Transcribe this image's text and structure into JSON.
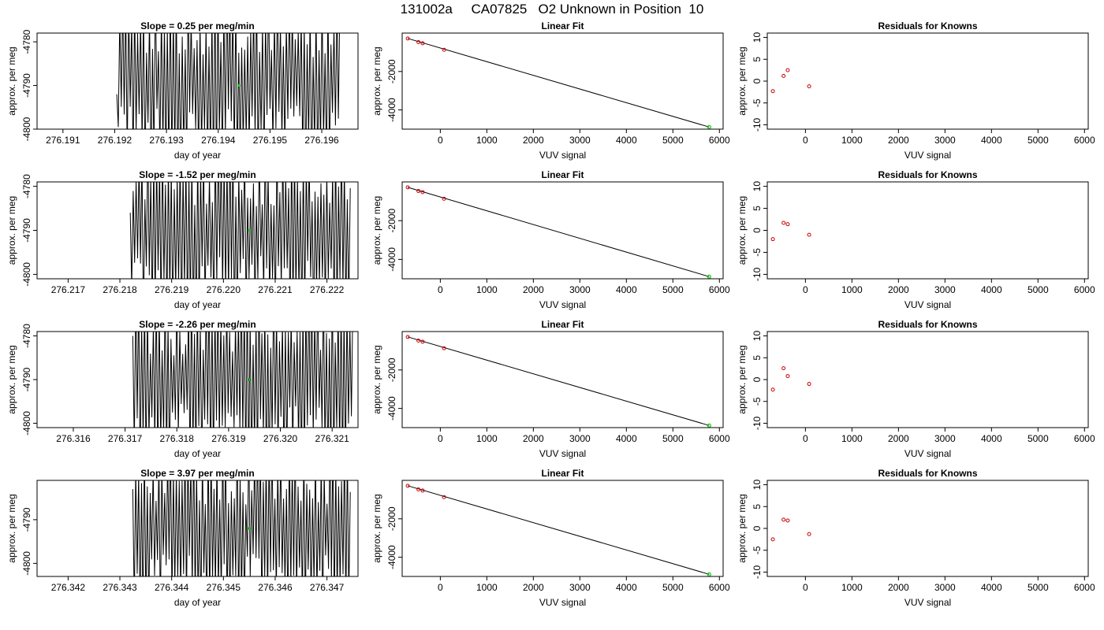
{
  "page": {
    "title": "131002a     CA07825   O2 Unknown in Position  10"
  },
  "chart_data": [
    {
      "type": "line",
      "panel": "trace",
      "title": "Slope =  0.25  per meg/min",
      "xlabel": "day of year",
      "ylabel": "approx. per meg",
      "xlim": [
        276.1905,
        276.1967
      ],
      "ylim": [
        -4800,
        -4778
      ],
      "xticks": [
        276.191,
        276.192,
        276.193,
        276.194,
        276.195,
        276.196
      ],
      "xtick_labels": [
        "276.191",
        "276.192",
        "276.193",
        "276.194",
        "276.195",
        "276.196"
      ],
      "yticks": [
        -4800,
        -4790,
        -4780
      ],
      "ytick_labels": [
        "-4800",
        "-4790",
        "-4780"
      ],
      "trace_x_range": [
        276.19204,
        276.19635
      ],
      "trace_start_y": -4792,
      "highlight_point": {
        "x": 276.1944,
        "y": -4790
      },
      "grid": false,
      "legend": "none"
    },
    {
      "type": "scatter",
      "panel": "fit",
      "title": "Linear Fit",
      "xlabel": "VUV signal",
      "ylabel": "approx. per meg",
      "xlim": [
        -820,
        6080
      ],
      "ylim": [
        -5000,
        0
      ],
      "xticks": [
        0,
        1000,
        2000,
        3000,
        4000,
        5000,
        6000
      ],
      "xtick_labels": [
        "0",
        "1000",
        "2000",
        "3000",
        "4000",
        "5000",
        "6000"
      ],
      "yticks": [
        -4000,
        -2000
      ],
      "ytick_labels": [
        "-4000",
        "-2000"
      ],
      "known_points": {
        "x": [
          -700,
          -470,
          -380,
          80
        ],
        "y": [
          -280,
          -470,
          -530,
          -870
        ]
      },
      "fit_line": {
        "x": [
          -700,
          5780
        ],
        "y": [
          -280,
          -4890
        ]
      },
      "unknown_point": {
        "x": 5780,
        "y": -4890
      },
      "grid": false,
      "legend": "none"
    },
    {
      "type": "scatter",
      "panel": "residuals",
      "title": "Residuals for Knowns",
      "xlabel": "VUV signal",
      "ylabel": "approx. per meg",
      "xlim": [
        -820,
        6080
      ],
      "ylim": [
        -11,
        11
      ],
      "xticks": [
        0,
        1000,
        2000,
        3000,
        4000,
        5000,
        6000
      ],
      "xtick_labels": [
        "0",
        "1000",
        "2000",
        "3000",
        "4000",
        "5000",
        "6000"
      ],
      "yticks": [
        -10,
        -5,
        0,
        5,
        10
      ],
      "ytick_labels": [
        "-10",
        "-5",
        "0",
        "5",
        "10"
      ],
      "points": {
        "x": [
          -700,
          -470,
          -380,
          80
        ],
        "y": [
          -2.3,
          1.2,
          2.5,
          -1.2
        ]
      },
      "grid": false,
      "legend": "none"
    },
    {
      "type": "line",
      "panel": "trace",
      "title": "Slope =  -1.52  per meg/min",
      "xlabel": "day of year",
      "ylabel": "approx. per meg",
      "xlim": [
        276.2164,
        276.2226
      ],
      "ylim": [
        -4801,
        -4779
      ],
      "xticks": [
        276.217,
        276.218,
        276.219,
        276.22,
        276.221,
        276.222
      ],
      "xtick_labels": [
        "276.217",
        "276.218",
        "276.219",
        "276.220",
        "276.221",
        "276.222"
      ],
      "yticks": [
        -4800,
        -4790,
        -4780
      ],
      "ytick_labels": [
        "-4800",
        "-4790",
        "-4780"
      ],
      "trace_x_range": [
        276.2182,
        276.22245
      ],
      "trace_start_y": -4786,
      "highlight_point": {
        "x": 276.2205,
        "y": -4790
      },
      "grid": false,
      "legend": "none"
    },
    {
      "type": "scatter",
      "panel": "fit",
      "title": "Linear Fit",
      "xlabel": "VUV signal",
      "ylabel": "approx. per meg",
      "xlim": [
        -820,
        6080
      ],
      "ylim": [
        -5000,
        0
      ],
      "xticks": [
        0,
        1000,
        2000,
        3000,
        4000,
        5000,
        6000
      ],
      "xtick_labels": [
        "0",
        "1000",
        "2000",
        "3000",
        "4000",
        "5000",
        "6000"
      ],
      "yticks": [
        -4000,
        -2000
      ],
      "ytick_labels": [
        "-4000",
        "-2000"
      ],
      "known_points": {
        "x": [
          -700,
          -470,
          -380,
          80
        ],
        "y": [
          -280,
          -470,
          -530,
          -870
        ]
      },
      "fit_line": {
        "x": [
          -700,
          5780
        ],
        "y": [
          -280,
          -4890
        ]
      },
      "unknown_point": {
        "x": 5780,
        "y": -4890
      },
      "grid": false,
      "legend": "none"
    },
    {
      "type": "scatter",
      "panel": "residuals",
      "title": "Residuals for Knowns",
      "xlabel": "VUV signal",
      "ylabel": "approx. per meg",
      "xlim": [
        -820,
        6080
      ],
      "ylim": [
        -11,
        11
      ],
      "xticks": [
        0,
        1000,
        2000,
        3000,
        4000,
        5000,
        6000
      ],
      "xtick_labels": [
        "0",
        "1000",
        "2000",
        "3000",
        "4000",
        "5000",
        "6000"
      ],
      "yticks": [
        -10,
        -5,
        0,
        5,
        10
      ],
      "ytick_labels": [
        "-10",
        "-5",
        "0",
        "5",
        "10"
      ],
      "points": {
        "x": [
          -700,
          -470,
          -380,
          80
        ],
        "y": [
          -2.0,
          1.7,
          1.4,
          -1.0
        ]
      },
      "grid": false,
      "legend": "none"
    },
    {
      "type": "line",
      "panel": "trace",
      "title": "Slope =  -2.26  per meg/min",
      "xlabel": "day of year",
      "ylabel": "approx. per meg",
      "xlim": [
        276.3153,
        276.3215
      ],
      "ylim": [
        -4801,
        -4779
      ],
      "xticks": [
        276.316,
        276.317,
        276.318,
        276.319,
        276.32,
        276.321
      ],
      "xtick_labels": [
        "276.316",
        "276.317",
        "276.318",
        "276.319",
        "276.320",
        "276.321"
      ],
      "yticks": [
        -4800,
        -4790,
        -4780
      ],
      "ytick_labels": [
        "-4800",
        "-4790",
        "-4780"
      ],
      "trace_x_range": [
        276.31715,
        276.3214
      ],
      "trace_start_y": -4780,
      "highlight_point": {
        "x": 276.3194,
        "y": -4790
      },
      "grid": false,
      "legend": "none"
    },
    {
      "type": "scatter",
      "panel": "fit",
      "title": "Linear Fit",
      "xlabel": "VUV signal",
      "ylabel": "approx. per meg",
      "xlim": [
        -820,
        6080
      ],
      "ylim": [
        -5000,
        0
      ],
      "xticks": [
        0,
        1000,
        2000,
        3000,
        4000,
        5000,
        6000
      ],
      "xtick_labels": [
        "0",
        "1000",
        "2000",
        "3000",
        "4000",
        "5000",
        "6000"
      ],
      "yticks": [
        -4000,
        -2000
      ],
      "ytick_labels": [
        "-4000",
        "-2000"
      ],
      "known_points": {
        "x": [
          -700,
          -470,
          -380,
          80
        ],
        "y": [
          -280,
          -470,
          -530,
          -870
        ]
      },
      "fit_line": {
        "x": [
          -700,
          5780
        ],
        "y": [
          -280,
          -4890
        ]
      },
      "unknown_point": {
        "x": 5780,
        "y": -4890
      },
      "grid": false,
      "legend": "none"
    },
    {
      "type": "scatter",
      "panel": "residuals",
      "title": "Residuals for Knowns",
      "xlabel": "VUV signal",
      "ylabel": "approx. per meg",
      "xlim": [
        -820,
        6080
      ],
      "ylim": [
        -11,
        11
      ],
      "xticks": [
        0,
        1000,
        2000,
        3000,
        4000,
        5000,
        6000
      ],
      "xtick_labels": [
        "0",
        "1000",
        "2000",
        "3000",
        "4000",
        "5000",
        "6000"
      ],
      "yticks": [
        -10,
        -5,
        0,
        5,
        10
      ],
      "ytick_labels": [
        "-10",
        "-5",
        "0",
        "5",
        "10"
      ],
      "points": {
        "x": [
          -700,
          -470,
          -380,
          80
        ],
        "y": [
          -2.3,
          2.6,
          0.8,
          -1.0
        ]
      },
      "grid": false,
      "legend": "none"
    },
    {
      "type": "line",
      "panel": "trace",
      "title": "Slope =  3.97  per meg/min",
      "xlabel": "day of year",
      "ylabel": "approx. per meg",
      "xlim": [
        276.3414,
        276.3476
      ],
      "ylim": [
        -4803,
        -4781
      ],
      "xticks": [
        276.342,
        276.343,
        276.344,
        276.345,
        276.346,
        276.347
      ],
      "xtick_labels": [
        "276.342",
        "276.343",
        "276.344",
        "276.345",
        "276.346",
        "276.347"
      ],
      "yticks": [
        -4800,
        -4790
      ],
      "ytick_labels": [
        "-4800",
        "-4790"
      ],
      "trace_x_range": [
        276.34325,
        276.34745
      ],
      "trace_start_y": -4783,
      "highlight_point": {
        "x": 276.3455,
        "y": -4792
      },
      "grid": false,
      "legend": "none"
    },
    {
      "type": "scatter",
      "panel": "fit",
      "title": "Linear Fit",
      "xlabel": "VUV signal",
      "ylabel": "approx. per meg",
      "xlim": [
        -820,
        6080
      ],
      "ylim": [
        -5000,
        0
      ],
      "xticks": [
        0,
        1000,
        2000,
        3000,
        4000,
        5000,
        6000
      ],
      "xtick_labels": [
        "0",
        "1000",
        "2000",
        "3000",
        "4000",
        "5000",
        "6000"
      ],
      "yticks": [
        -4000,
        -2000
      ],
      "ytick_labels": [
        "-4000",
        "-2000"
      ],
      "known_points": {
        "x": [
          -700,
          -470,
          -380,
          80
        ],
        "y": [
          -280,
          -470,
          -530,
          -870
        ]
      },
      "fit_line": {
        "x": [
          -700,
          5780
        ],
        "y": [
          -280,
          -4890
        ]
      },
      "unknown_point": {
        "x": 5780,
        "y": -4890
      },
      "grid": false,
      "legend": "none"
    },
    {
      "type": "scatter",
      "panel": "residuals",
      "title": "Residuals for Knowns",
      "xlabel": "VUV signal",
      "ylabel": "approx. per meg",
      "xlim": [
        -820,
        6080
      ],
      "ylim": [
        -11,
        11
      ],
      "xticks": [
        0,
        1000,
        2000,
        3000,
        4000,
        5000,
        6000
      ],
      "xtick_labels": [
        "0",
        "1000",
        "2000",
        "3000",
        "4000",
        "5000",
        "6000"
      ],
      "yticks": [
        -10,
        -5,
        0,
        5,
        10
      ],
      "ytick_labels": [
        "-10",
        "-5",
        "0",
        "5",
        "10"
      ],
      "points": {
        "x": [
          -700,
          -470,
          -380,
          80
        ],
        "y": [
          -2.5,
          2.0,
          1.8,
          -1.3
        ]
      },
      "grid": false,
      "legend": "none"
    }
  ],
  "colors": {
    "axis": "#000000",
    "trace": "#000000",
    "fit_line": "#000000",
    "known_point": "#cc0000",
    "unknown_point": "#00cc00",
    "highlight": "#00cc00"
  }
}
